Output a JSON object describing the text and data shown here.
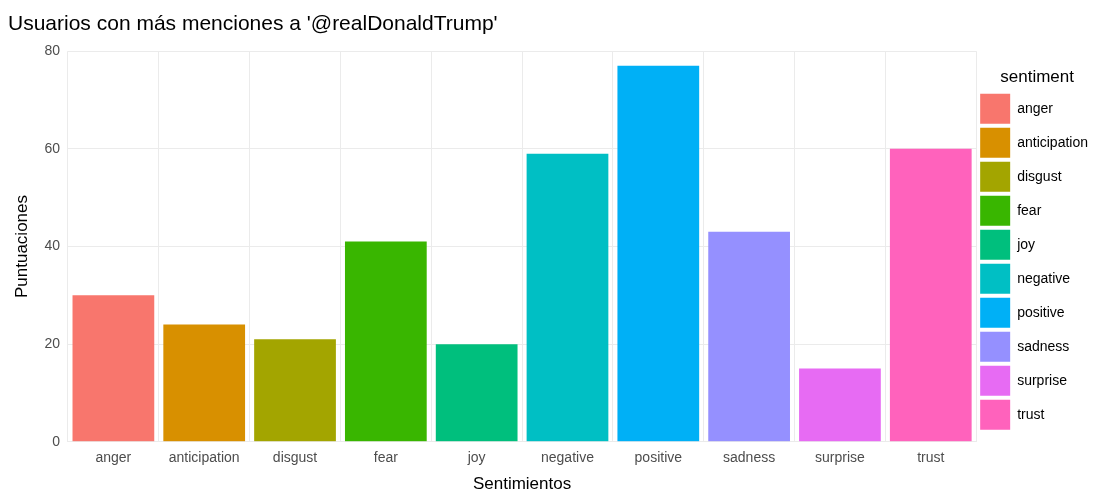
{
  "chart_data": {
    "type": "bar",
    "title": "Usuarios con más menciones a '@realDonaldTrump'",
    "xlabel": "Sentimientos",
    "ylabel": "Puntuaciones",
    "legend_title": "sentiment",
    "categories": [
      "anger",
      "anticipation",
      "disgust",
      "fear",
      "joy",
      "negative",
      "positive",
      "sadness",
      "surprise",
      "trust"
    ],
    "series": [
      {
        "name": "anger",
        "color": "#f8766d",
        "values": [
          30,
          null,
          null,
          null,
          null,
          null,
          null,
          null,
          null,
          null
        ]
      },
      {
        "name": "anticipation",
        "color": "#d89000",
        "values": [
          null,
          24,
          null,
          null,
          null,
          null,
          null,
          null,
          null,
          null
        ]
      },
      {
        "name": "disgust",
        "color": "#a3a500",
        "values": [
          null,
          null,
          21,
          null,
          null,
          null,
          null,
          null,
          null,
          null
        ]
      },
      {
        "name": "fear",
        "color": "#39b600",
        "values": [
          null,
          null,
          null,
          41,
          null,
          null,
          null,
          null,
          null,
          null
        ]
      },
      {
        "name": "joy",
        "color": "#00bf7d",
        "values": [
          null,
          null,
          null,
          null,
          20,
          null,
          null,
          null,
          null,
          null
        ]
      },
      {
        "name": "negative",
        "color": "#00bfc4",
        "values": [
          null,
          null,
          null,
          null,
          null,
          59,
          null,
          null,
          null,
          null
        ]
      },
      {
        "name": "positive",
        "color": "#00b0f6",
        "values": [
          null,
          null,
          null,
          null,
          null,
          null,
          77,
          null,
          null,
          null
        ]
      },
      {
        "name": "sadness",
        "color": "#9590ff",
        "values": [
          null,
          null,
          null,
          null,
          null,
          null,
          null,
          43,
          null,
          null
        ]
      },
      {
        "name": "surprise",
        "color": "#e76bf3",
        "values": [
          null,
          null,
          null,
          null,
          null,
          null,
          null,
          null,
          15,
          null
        ]
      },
      {
        "name": "trust",
        "color": "#ff62bc",
        "values": [
          null,
          null,
          null,
          null,
          null,
          null,
          null,
          null,
          null,
          60
        ]
      }
    ],
    "ylim": [
      0,
      80
    ],
    "yticks": [
      0,
      20,
      40,
      60,
      80
    ],
    "grid": true,
    "legend": "right"
  }
}
